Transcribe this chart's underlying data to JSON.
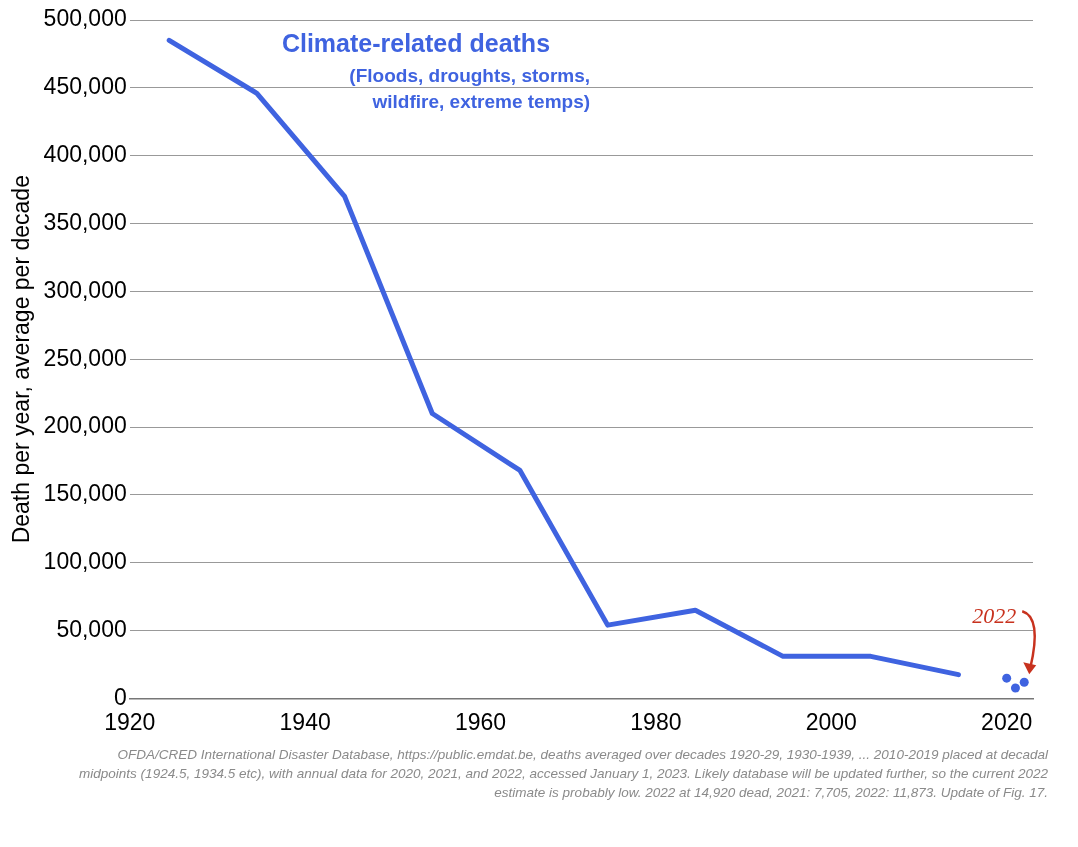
{
  "chart_data": {
    "type": "line",
    "ylabel": "Death per year, average per decade",
    "x": [
      1924.5,
      1934.5,
      1944.5,
      1954.5,
      1964.5,
      1974.5,
      1984.5,
      1994.5,
      2004.5,
      2014.5
    ],
    "series": [
      {
        "name": "Climate-related deaths",
        "type": "line",
        "color": "#3f63e0",
        "marker": "none",
        "values": [
          485000,
          446000,
          370000,
          210000,
          168000,
          54000,
          65000,
          31000,
          31000,
          17500
        ]
      },
      {
        "type": "scatter",
        "color": "#3f63e0",
        "marker": "circle",
        "x": [
          2020,
          2021,
          2022
        ],
        "values": [
          14920,
          7705,
          11873
        ]
      }
    ],
    "xlim": [
      1920,
      2023
    ],
    "xticks": [
      1920,
      1940,
      1960,
      1980,
      2000,
      2020
    ],
    "ylim": [
      0,
      500000
    ],
    "yticks": [
      {
        "value": 0,
        "label": "0"
      },
      {
        "value": 50000,
        "label": "50,000"
      },
      {
        "value": 100000,
        "label": "100,000"
      },
      {
        "value": 150000,
        "label": "150,000"
      },
      {
        "value": 200000,
        "label": "200,000"
      },
      {
        "value": 250000,
        "label": "250,000"
      },
      {
        "value": 300000,
        "label": "300,000"
      },
      {
        "value": 350000,
        "label": "350,000"
      },
      {
        "value": 400000,
        "label": "400,000"
      },
      {
        "value": 450000,
        "label": "450,000"
      },
      {
        "value": 500000,
        "label": "500,000"
      }
    ],
    "grid": "y",
    "legend": false,
    "annotations": [
      "(Floods, droughts, storms, wildfire, extreme temps)",
      {
        "text": "2022",
        "x": 2022,
        "y": 11873
      },
      "OFDA/CRED International Disaster Database, https://public.emdat.be, deaths averaged over decades 1920-29, 1930-1939, ... 2010-2019 placed at decadal midpoints (1924.5, 1934.5 etc), with annual data for 2020, 2021, and 2022, accessed January 1, 2023. Likely database will be updated further, so the current 2022 estimate is probably low. 2022 at 14,920 dead, 2021: 7,705, 2022: 11,873. Update of Fig. 17."
    ]
  }
}
